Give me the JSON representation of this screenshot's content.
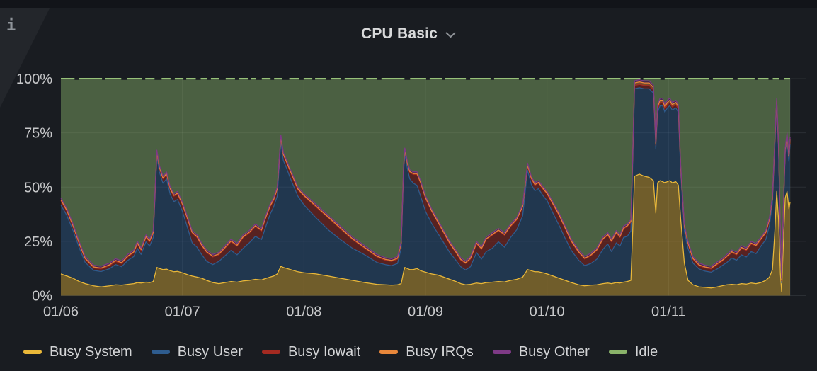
{
  "panel": {
    "title": "CPU Basic",
    "chevron_icon": "chevron-down",
    "info_corner_icon": "i"
  },
  "colors": {
    "bg_outer": "#121419",
    "bg_panel": "#191c21",
    "corner_triangle": "#23262b",
    "title_text": "#d8d9da",
    "axis_text": "#c7c8ca",
    "grid": "rgba(204,214,224,0.10)",
    "series": {
      "Busy System": "#EAB839",
      "Busy User": "#2E5C8F",
      "Busy Iowait": "#A42A21",
      "Busy IRQs": "#E8873B",
      "Busy Other": "#7E3A86",
      "Idle": "#8AB36A"
    },
    "idle_top_line": "#97C179"
  },
  "legend": {
    "items": [
      {
        "label": "Busy System",
        "color": "#EAB839"
      },
      {
        "label": "Busy User",
        "color": "#2E5C8F"
      },
      {
        "label": "Busy Iowait",
        "color": "#A42A21"
      },
      {
        "label": "Busy IRQs",
        "color": "#E8873B"
      },
      {
        "label": "Busy Other",
        "color": "#7E3A86"
      },
      {
        "label": "Idle",
        "color": "#8AB36A"
      }
    ]
  },
  "chart_data": {
    "type": "area",
    "stacked": true,
    "unit": "percent",
    "title": "CPU Basic",
    "ylim": [
      0,
      100
    ],
    "y_ticks": [
      "0%",
      "25%",
      "50%",
      "75%",
      "100%"
    ],
    "y_tick_values": [
      0,
      25,
      50,
      75,
      100
    ],
    "x_ticks": [
      "01/06",
      "01/07",
      "01/08",
      "01/09",
      "01/10",
      "01/11"
    ],
    "x_tick_days": [
      0,
      1,
      2,
      3,
      4,
      5
    ],
    "x_range_days": [
      0,
      6
    ],
    "grid": true,
    "legend_position": "bottom",
    "series_order": [
      "Busy System",
      "Busy User",
      "Busy Iowait",
      "Busy IRQs",
      "Busy Other",
      "Idle"
    ],
    "idle_note": "Idle = 100 minus sum of busy series",
    "row_format": [
      "day_offset_from_01_06",
      "busy_system_pct",
      "busy_user_pct",
      "busy_iowait_pct",
      "busy_irqs_pct",
      "busy_other_pct"
    ],
    "rows": [
      [
        0.0,
        10,
        31.8,
        2,
        0.4,
        0.8
      ],
      [
        0.05,
        9,
        27.8,
        2,
        0.4,
        0.8
      ],
      [
        0.1,
        8,
        22.0,
        1.8,
        0.4,
        0.8
      ],
      [
        0.15,
        6.5,
        15.7,
        1.6,
        0.4,
        0.8
      ],
      [
        0.2,
        5.5,
        9.8,
        1.5,
        0.4,
        0.8
      ],
      [
        0.27,
        4.5,
        7.1,
        1.2,
        0.4,
        0.8
      ],
      [
        0.33,
        4,
        7.1,
        1.2,
        0.4,
        0.8
      ],
      [
        0.4,
        4.5,
        7.9,
        1.4,
        0.4,
        0.8
      ],
      [
        0.45,
        5,
        9.3,
        1.5,
        0.4,
        0.8
      ],
      [
        0.5,
        4.8,
        8.5,
        1.5,
        0.4,
        0.8
      ],
      [
        0.55,
        5.2,
        11.0,
        1.6,
        0.4,
        0.8
      ],
      [
        0.6,
        5.5,
        12.5,
        1.8,
        0.4,
        0.8
      ],
      [
        0.63,
        6,
        15.8,
        2,
        0.4,
        0.8
      ],
      [
        0.66,
        5.8,
        13.2,
        1.8,
        0.4,
        0.8
      ],
      [
        0.7,
        6.2,
        18.6,
        2,
        0.4,
        0.8
      ],
      [
        0.73,
        6,
        16.8,
        2,
        0.4,
        0.8
      ],
      [
        0.76,
        6.5,
        20.3,
        2,
        0.4,
        0.8
      ],
      [
        0.79,
        13,
        51.3,
        1.5,
        0.4,
        0.8
      ],
      [
        0.81,
        12.5,
        44.5,
        1.8,
        0.4,
        0.8
      ],
      [
        0.84,
        12,
        39.8,
        2,
        0.4,
        0.8
      ],
      [
        0.87,
        12.2,
        41.6,
        2,
        0.4,
        0.8
      ],
      [
        0.9,
        11.5,
        35.1,
        2.2,
        0.4,
        0.8
      ],
      [
        0.93,
        11,
        32.3,
        2.5,
        0.4,
        0.8
      ],
      [
        0.96,
        11.2,
        33.1,
        2.5,
        0.4,
        0.8
      ],
      [
        1.0,
        10.5,
        28.3,
        3,
        0.4,
        0.8
      ],
      [
        1.05,
        9.5,
        20.3,
        4,
        0.4,
        0.8
      ],
      [
        1.08,
        9,
        15.3,
        4.5,
        0.4,
        0.8
      ],
      [
        1.12,
        8.5,
        13.8,
        4.5,
        0.4,
        0.8
      ],
      [
        1.16,
        8,
        10.8,
        4,
        0.4,
        0.8
      ],
      [
        1.2,
        7,
        8.8,
        4,
        0.4,
        0.8
      ],
      [
        1.25,
        6,
        8.3,
        3.5,
        0.4,
        0.8
      ],
      [
        1.3,
        5.5,
        10.3,
        3,
        0.4,
        0.8
      ],
      [
        1.35,
        6,
        12.3,
        3.5,
        0.4,
        0.8
      ],
      [
        1.4,
        6.5,
        14.3,
        4,
        0.4,
        0.8
      ],
      [
        1.45,
        6.2,
        12.6,
        4,
        0.4,
        0.8
      ],
      [
        1.5,
        6.8,
        15.0,
        5,
        0.4,
        0.8
      ],
      [
        1.55,
        7,
        17.3,
        4.5,
        0.4,
        0.8
      ],
      [
        1.6,
        7.5,
        19.8,
        4.5,
        0.4,
        0.8
      ],
      [
        1.65,
        7.2,
        18.6,
        4,
        0.4,
        0.8
      ],
      [
        1.68,
        7.8,
        23.0,
        4,
        0.4,
        0.8
      ],
      [
        1.72,
        8.5,
        28.8,
        3.5,
        0.4,
        0.8
      ],
      [
        1.75,
        9,
        31.8,
        3,
        0.4,
        0.8
      ],
      [
        1.78,
        10,
        35.8,
        3,
        0.4,
        0.8
      ],
      [
        1.81,
        13.5,
        57.3,
        2,
        0.4,
        0.8
      ],
      [
        1.83,
        13,
        49.3,
        2.5,
        0.4,
        0.8
      ],
      [
        1.86,
        12.5,
        45.8,
        2.5,
        0.4,
        0.8
      ],
      [
        1.89,
        12,
        41.8,
        3,
        0.4,
        0.8
      ],
      [
        1.92,
        11.5,
        38.3,
        3,
        0.4,
        0.8
      ],
      [
        1.95,
        11,
        34.8,
        3,
        0.4,
        0.8
      ],
      [
        2.0,
        10.5,
        31.3,
        4,
        0.4,
        0.8
      ],
      [
        2.1,
        10,
        25.8,
        5,
        0.4,
        0.8
      ],
      [
        2.2,
        9,
        21.3,
        5.5,
        0.4,
        0.8
      ],
      [
        2.3,
        8,
        17.8,
        5,
        0.4,
        0.8
      ],
      [
        2.4,
        7,
        14.8,
        4,
        0.4,
        0.8
      ],
      [
        2.5,
        6,
        12.8,
        3,
        0.4,
        0.8
      ],
      [
        2.6,
        5.2,
        10.1,
        2.5,
        0.4,
        0.8
      ],
      [
        2.67,
        5,
        9.3,
        2,
        0.4,
        0.8
      ],
      [
        2.72,
        4.8,
        9.0,
        2,
        0.4,
        0.8
      ],
      [
        2.77,
        5,
        9.8,
        2,
        0.4,
        0.8
      ],
      [
        2.8,
        5.5,
        16.3,
        2,
        0.4,
        0.8
      ],
      [
        2.82,
        11,
        46.3,
        1.5,
        0.4,
        0.8
      ],
      [
        2.83,
        13,
        52.3,
        1.5,
        0.4,
        0.8
      ],
      [
        2.85,
        12.5,
        46.3,
        2,
        0.4,
        0.8
      ],
      [
        2.87,
        12,
        41.8,
        3,
        0.4,
        0.8
      ],
      [
        2.9,
        12,
        39.8,
        4,
        0.4,
        0.8
      ],
      [
        2.93,
        12.5,
        38.3,
        5,
        0.4,
        0.8
      ],
      [
        2.96,
        11.5,
        34.3,
        6,
        0.4,
        0.8
      ],
      [
        3.0,
        10.8,
        28.0,
        6,
        0.4,
        0.8
      ],
      [
        3.05,
        10,
        23.3,
        5.5,
        0.4,
        0.8
      ],
      [
        3.1,
        9.5,
        19.3,
        5,
        0.4,
        0.8
      ],
      [
        3.15,
        8.5,
        15.8,
        4.5,
        0.4,
        0.8
      ],
      [
        3.2,
        7.5,
        12.3,
        4,
        0.4,
        0.8
      ],
      [
        3.25,
        6.5,
        9.8,
        3.5,
        0.4,
        0.8
      ],
      [
        3.29,
        5.5,
        7.8,
        3,
        0.4,
        0.8
      ],
      [
        3.33,
        5,
        6.8,
        3,
        0.4,
        0.8
      ],
      [
        3.37,
        5.2,
        8.1,
        3.5,
        0.4,
        0.8
      ],
      [
        3.42,
        5.8,
        14.0,
        4,
        0.4,
        0.8
      ],
      [
        3.46,
        5.5,
        11.3,
        4.5,
        0.4,
        0.8
      ],
      [
        3.5,
        6,
        14.3,
        5.5,
        0.4,
        0.8
      ],
      [
        3.55,
        6.2,
        15.6,
        6,
        0.4,
        0.8
      ],
      [
        3.6,
        6.5,
        18.3,
        5,
        0.4,
        0.8
      ],
      [
        3.65,
        6.3,
        16.0,
        5.5,
        0.4,
        0.8
      ],
      [
        3.7,
        7,
        19.8,
        5,
        0.4,
        0.8
      ],
      [
        3.75,
        7.5,
        22.8,
        4.5,
        0.4,
        0.8
      ],
      [
        3.8,
        8.5,
        28.3,
        4,
        0.4,
        0.8
      ],
      [
        3.84,
        12,
        45.8,
        2,
        0.4,
        0.8
      ],
      [
        3.87,
        11.5,
        39.8,
        2.5,
        0.4,
        0.8
      ],
      [
        3.9,
        11,
        37.3,
        2.5,
        0.4,
        0.8
      ],
      [
        3.93,
        11,
        38.3,
        2.5,
        0.4,
        0.8
      ],
      [
        3.97,
        10.5,
        35.3,
        3,
        0.4,
        0.8
      ],
      [
        4.0,
        10,
        33.8,
        3,
        0.4,
        0.8
      ],
      [
        4.05,
        9,
        28.8,
        4,
        0.4,
        0.8
      ],
      [
        4.1,
        8,
        24.3,
        4.5,
        0.4,
        0.8
      ],
      [
        4.15,
        7,
        19.3,
        4.5,
        0.4,
        0.8
      ],
      [
        4.2,
        6,
        14.8,
        4,
        0.4,
        0.8
      ],
      [
        4.26,
        5,
        11.3,
        3.5,
        0.4,
        0.8
      ],
      [
        4.31,
        4.5,
        9.3,
        3,
        0.4,
        0.8
      ],
      [
        4.36,
        4.8,
        10.0,
        3.5,
        0.4,
        0.8
      ],
      [
        4.41,
        5,
        11.8,
        4,
        0.4,
        0.8
      ],
      [
        4.46,
        5.5,
        15.8,
        4.5,
        0.4,
        0.8
      ],
      [
        4.5,
        5.8,
        18.0,
        4,
        0.4,
        0.8
      ],
      [
        4.53,
        5.5,
        14.8,
        4.5,
        0.4,
        0.8
      ],
      [
        4.57,
        6,
        18.3,
        4.5,
        0.4,
        0.8
      ],
      [
        4.6,
        5.8,
        17.0,
        4,
        0.4,
        0.8
      ],
      [
        4.63,
        6.2,
        20.6,
        4,
        0.4,
        0.8
      ],
      [
        4.66,
        6.5,
        20.8,
        4.5,
        0.4,
        0.8
      ],
      [
        4.69,
        7,
        22.8,
        4,
        0.4,
        0.8
      ],
      [
        4.705,
        30,
        30.8,
        3,
        0.4,
        0.8
      ],
      [
        4.72,
        55,
        40.3,
        1.5,
        1.2,
        1
      ],
      [
        4.76,
        56,
        39.8,
        1.5,
        1.2,
        1
      ],
      [
        4.8,
        55,
        40.3,
        1.5,
        1.2,
        1
      ],
      [
        4.84,
        54.5,
        40.8,
        1.5,
        1.2,
        1
      ],
      [
        4.875,
        53,
        40.3,
        1.5,
        1.2,
        1
      ],
      [
        4.885,
        45,
        36.6,
        1.5,
        1,
        0.9
      ],
      [
        4.895,
        38,
        29.8,
        1.5,
        0.8,
        0.9
      ],
      [
        4.91,
        52,
        32.5,
        1.5,
        1,
        1
      ],
      [
        4.93,
        53,
        34.5,
        1.5,
        1,
        1
      ],
      [
        4.95,
        52.5,
        35.0,
        1.5,
        1,
        1
      ],
      [
        4.97,
        52,
        32.5,
        1.5,
        1,
        1
      ],
      [
        4.99,
        52.5,
        34.0,
        1.5,
        1,
        1
      ],
      [
        5.01,
        53,
        34.5,
        1.5,
        1,
        1
      ],
      [
        5.03,
        52,
        33.5,
        1.5,
        1,
        1
      ],
      [
        5.06,
        52.5,
        34.0,
        1.5,
        1,
        1
      ],
      [
        5.08,
        51,
        33.5,
        1.5,
        1,
        1
      ],
      [
        5.1,
        35,
        21.5,
        2,
        0.6,
        0.9
      ],
      [
        5.13,
        15,
        14.8,
        2,
        0.4,
        0.8
      ],
      [
        5.16,
        7,
        14.8,
        2,
        0.4,
        0.8
      ],
      [
        5.2,
        5,
        10.0,
        1.8,
        0.4,
        0.8
      ],
      [
        5.25,
        4,
        8.3,
        1.5,
        0.4,
        0.8
      ],
      [
        5.3,
        3.8,
        7.5,
        1.5,
        0.4,
        0.8
      ],
      [
        5.35,
        3.5,
        7.3,
        1.5,
        0.4,
        0.8
      ],
      [
        5.4,
        4,
        8.3,
        2,
        0.4,
        0.8
      ],
      [
        5.44,
        4.5,
        9.3,
        2,
        0.4,
        0.8
      ],
      [
        5.48,
        5,
        10.3,
        2.5,
        0.4,
        0.8
      ],
      [
        5.52,
        5.2,
        12.1,
        2.5,
        0.4,
        0.8
      ],
      [
        5.56,
        5,
        11.3,
        2.5,
        0.4,
        0.8
      ],
      [
        5.6,
        5.5,
        13.3,
        3,
        0.4,
        0.8
      ],
      [
        5.64,
        5.3,
        12.5,
        3,
        0.4,
        0.8
      ],
      [
        5.68,
        5.8,
        14.5,
        3.5,
        0.4,
        0.8
      ],
      [
        5.72,
        5.5,
        13.8,
        3.5,
        0.4,
        0.8
      ],
      [
        5.76,
        6,
        16.8,
        3,
        0.4,
        0.8
      ],
      [
        5.8,
        7,
        18.8,
        3,
        0.4,
        0.8
      ],
      [
        5.83,
        8.5,
        23.8,
        2.5,
        0.4,
        0.8
      ],
      [
        5.855,
        12,
        30.8,
        2,
        0.4,
        0.8
      ],
      [
        5.875,
        30,
        38.8,
        2,
        0.4,
        0.8
      ],
      [
        5.89,
        48,
        40.3,
        1.5,
        0.4,
        0.8
      ],
      [
        5.905,
        35,
        32.3,
        1.5,
        0.4,
        0.8
      ],
      [
        5.92,
        10,
        15.6,
        1.2,
        0.4,
        0.8
      ],
      [
        5.93,
        2,
        3.8,
        1,
        0.4,
        0.8
      ],
      [
        5.945,
        25,
        14.6,
        1.2,
        0.4,
        0.8
      ],
      [
        5.96,
        45,
        20.3,
        1.5,
        0.4,
        0.8
      ],
      [
        5.975,
        48,
        24.3,
        1.5,
        0.4,
        0.8
      ],
      [
        5.99,
        40,
        21.8,
        2,
        0.4,
        0.8
      ],
      [
        6.0,
        43,
        26.8,
        2,
        0.4,
        0.8
      ]
    ],
    "top_gap_dashes_days": [
      [
        0.13,
        6
      ],
      [
        0.35,
        4
      ],
      [
        0.52,
        8
      ],
      [
        0.68,
        5
      ],
      [
        0.8,
        10
      ],
      [
        0.92,
        6
      ],
      [
        1.02,
        4
      ],
      [
        1.13,
        7
      ],
      [
        1.22,
        5
      ],
      [
        1.33,
        9
      ],
      [
        1.45,
        6
      ],
      [
        1.55,
        4
      ],
      [
        1.63,
        8
      ],
      [
        1.74,
        5
      ],
      [
        1.85,
        10
      ],
      [
        1.98,
        6
      ],
      [
        2.08,
        4
      ],
      [
        2.2,
        7
      ],
      [
        2.32,
        5
      ],
      [
        2.5,
        4
      ],
      [
        2.62,
        6
      ],
      [
        2.85,
        8
      ],
      [
        3.02,
        5
      ],
      [
        3.15,
        4
      ],
      [
        3.35,
        6
      ],
      [
        3.55,
        5
      ],
      [
        3.78,
        4
      ],
      [
        3.92,
        7
      ],
      [
        4.05,
        5
      ],
      [
        4.22,
        4
      ],
      [
        4.48,
        6
      ],
      [
        4.62,
        5
      ],
      [
        4.78,
        4
      ],
      [
        4.95,
        6
      ],
      [
        5.15,
        4
      ],
      [
        5.35,
        5
      ],
      [
        5.55,
        6
      ],
      [
        5.72,
        4
      ],
      [
        5.84,
        6
      ],
      [
        5.93,
        8
      ]
    ]
  }
}
